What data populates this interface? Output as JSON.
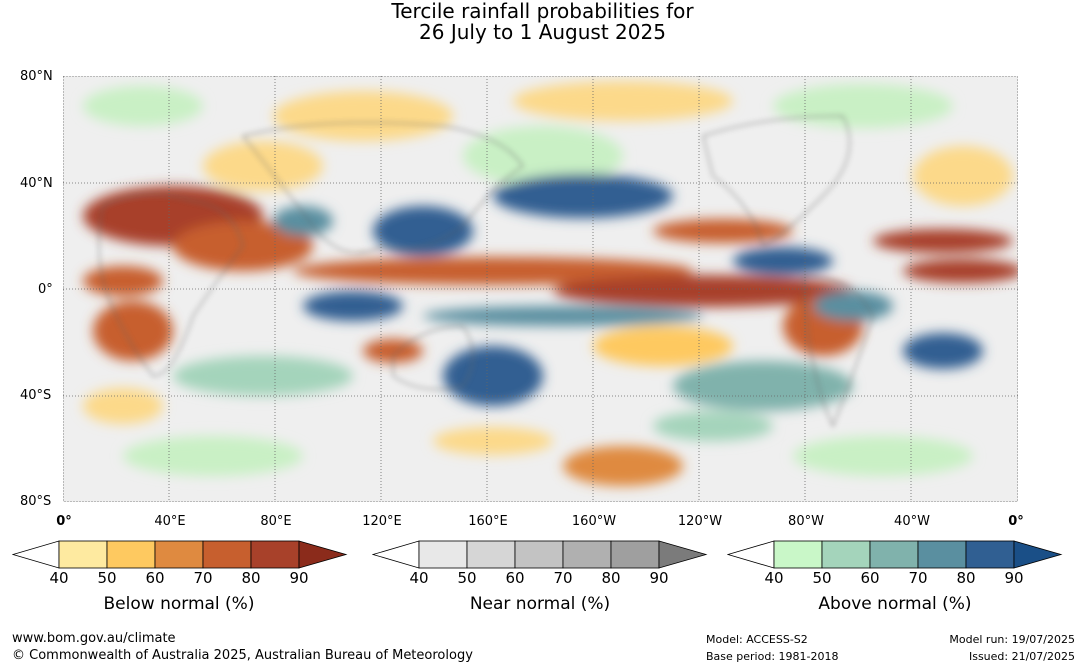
{
  "title": {
    "line1": "Tercile rainfall probabilities for",
    "line2": "26 July to 1 August 2025"
  },
  "map": {
    "lat_labels": [
      "80°N",
      "40°N",
      "0°",
      "40°S",
      "80°S"
    ],
    "lon_labels": [
      "0°",
      "40°E",
      "80°E",
      "120°E",
      "160°E",
      "160°W",
      "120°W",
      "80°W",
      "40°W",
      "0°"
    ]
  },
  "legends": [
    {
      "title": "Below normal (%)",
      "ticks": [
        "40",
        "50",
        "60",
        "70",
        "80",
        "90"
      ],
      "colors": [
        "#ffffff",
        "#feeaa0",
        "#fec960",
        "#df8a40",
        "#c75f2e",
        "#a8412a",
        "#8b2b1b"
      ]
    },
    {
      "title": "Near normal (%)",
      "ticks": [
        "40",
        "50",
        "60",
        "70",
        "80",
        "90"
      ],
      "colors": [
        "#ffffff",
        "#e8e8e8",
        "#d6d6d6",
        "#c3c3c3",
        "#b0b0b0",
        "#9f9f9f",
        "#7b7b7b"
      ]
    },
    {
      "title": "Above normal (%)",
      "ticks": [
        "40",
        "50",
        "60",
        "70",
        "80",
        "90"
      ],
      "colors": [
        "#ffffff",
        "#c9f7c8",
        "#a4d4bb",
        "#80b2ac",
        "#5a8fa0",
        "#305f92",
        "#1a4f87"
      ]
    }
  ],
  "footer": {
    "url": "www.bom.gov.au/climate",
    "copyright": "© Commonwealth of Australia 2025, Australian Bureau of Meteorology",
    "model": "Model: ACCESS-S2",
    "base_period": "Base period: 1981-2018",
    "model_run": "Model run: 19/07/2025",
    "issued": "Issued: 21/07/2025"
  }
}
